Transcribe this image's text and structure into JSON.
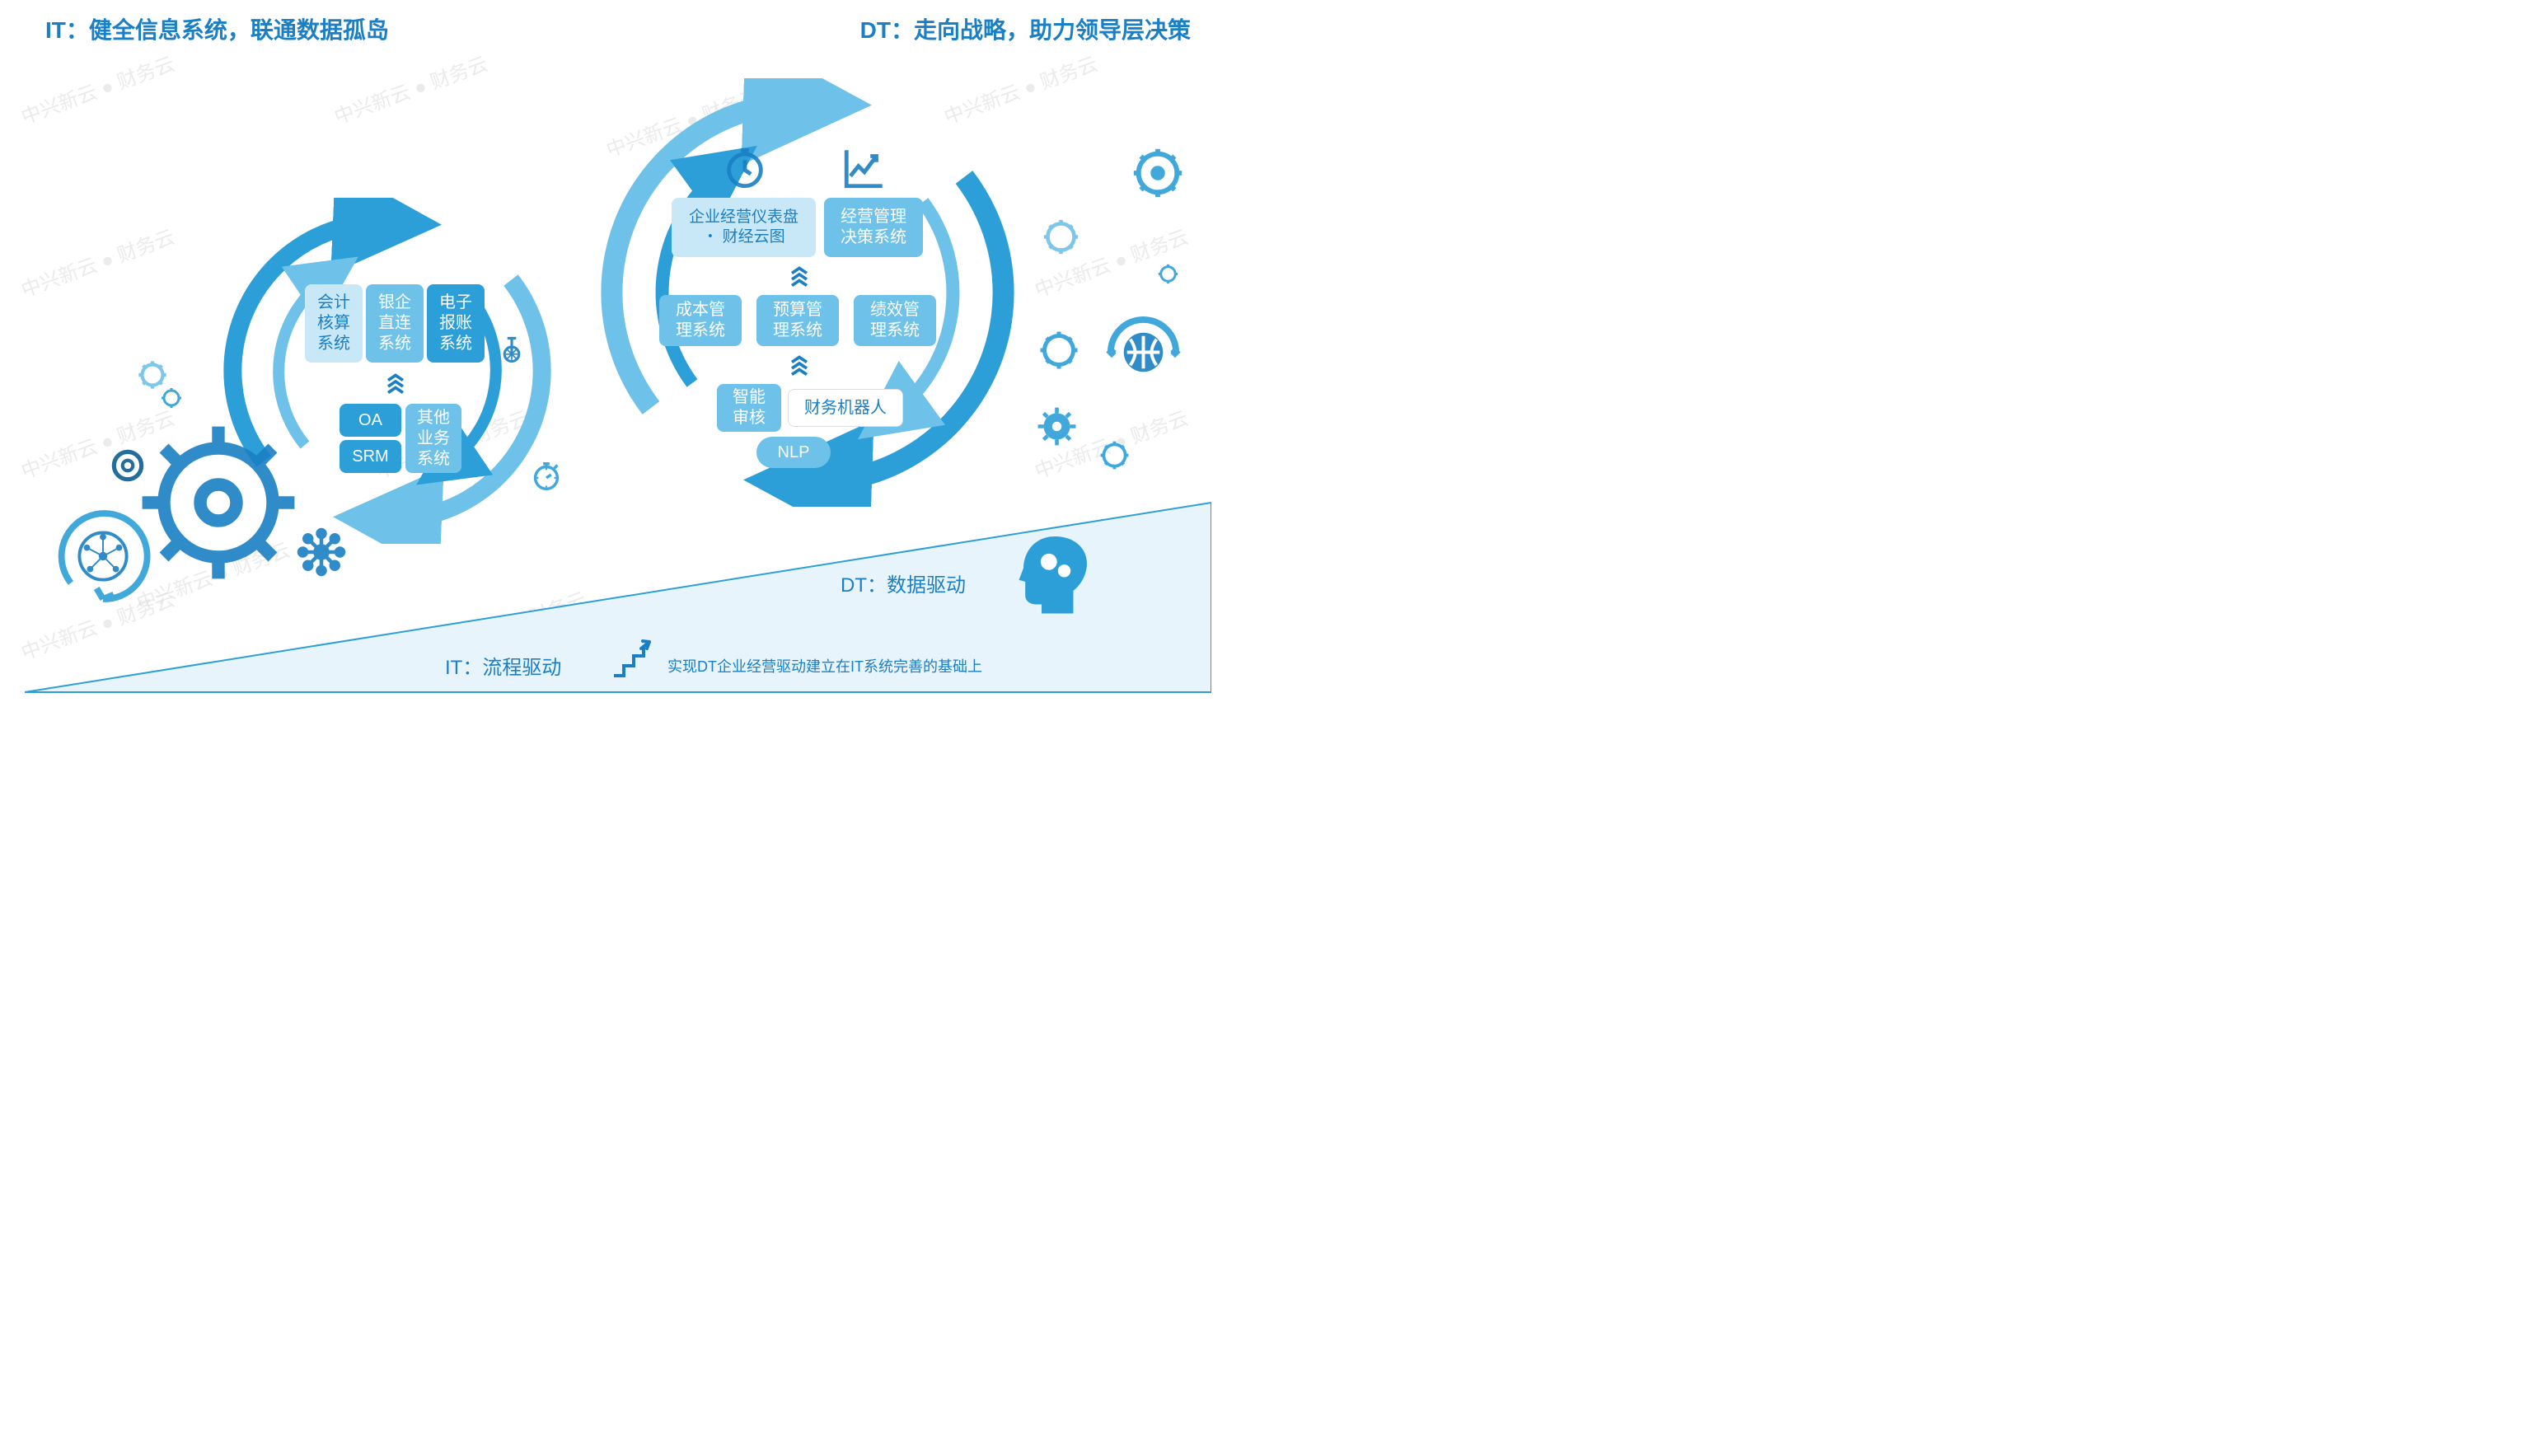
{
  "colors": {
    "primary": "#1a7fc4",
    "arc_blue": "#2c9fd8",
    "arc_light": "#6ec1e8",
    "box_light_bg": "#c9e8f7",
    "box_light_fg": "#1a7fc4",
    "box_mid_bg": "#6ec1e8",
    "box_deep_bg": "#2c9fd8",
    "box_white_bg": "#ffffff",
    "triangle_fill": "#e8f4fb",
    "triangle_stroke": "#2c9fd8",
    "watermark": "#d8d8d8"
  },
  "titles": {
    "left": "IT：健全信息系统，联通数据孤岛",
    "right": "DT：走向战略，助力领导层决策"
  },
  "left_cycle": {
    "top_row": [
      {
        "label": "会计\n核算\n系统",
        "style": "light"
      },
      {
        "label": "银企\n直连\n系统",
        "style": "mid"
      },
      {
        "label": "电子\n报账\n系统",
        "style": "deep"
      }
    ],
    "bottom_left": [
      {
        "label": "OA",
        "style": "deep"
      },
      {
        "label": "SRM",
        "style": "deep"
      }
    ],
    "bottom_right": {
      "label": "其他\n业务\n系统",
      "style": "mid"
    }
  },
  "right_cycle": {
    "top_icons": [
      "clock",
      "chart-up"
    ],
    "top_row": [
      {
        "label": "企业经营仪表盘\n・ 财经云图",
        "style": "light"
      },
      {
        "label": "经营管理\n决策系统",
        "style": "mid"
      }
    ],
    "mid_row": [
      {
        "label": "成本管\n理系统",
        "style": "mid"
      },
      {
        "label": "预算管\n理系统",
        "style": "mid"
      },
      {
        "label": "绩效管\n理系统",
        "style": "mid"
      }
    ],
    "lower_row": [
      {
        "label": "智能\n审核",
        "style": "mid"
      },
      {
        "label": "财务机器人",
        "style": "white"
      }
    ],
    "bottom_row": [
      {
        "label": "NLP",
        "style": "mid"
      }
    ]
  },
  "triangle": {
    "it_label": "IT：流程驱动",
    "dt_label": "DT：数据驱动",
    "sub_label": "实现DT企业经营驱动建立在IT系统完善的基础上"
  },
  "watermark_text": "中兴新云 ● 财务云"
}
